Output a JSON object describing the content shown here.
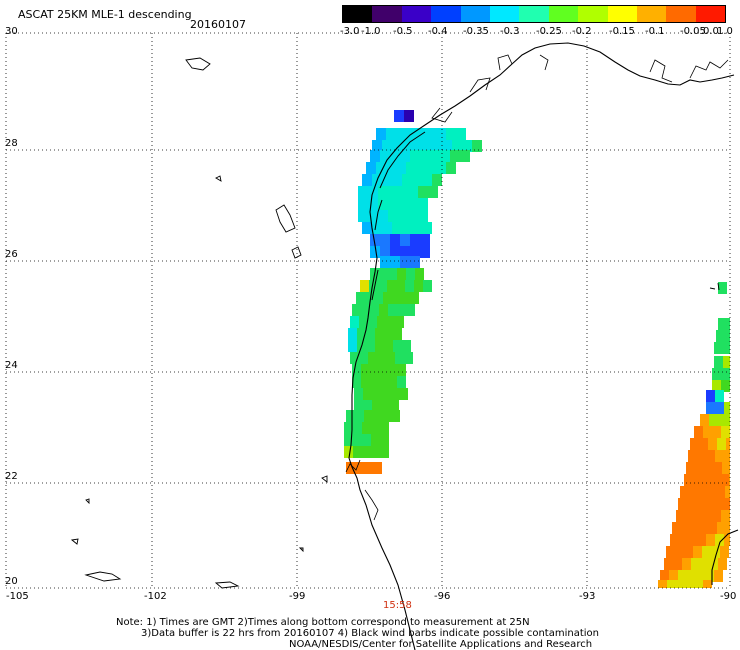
{
  "header": {
    "title": "ASCAT 25KM MLE-1 descending",
    "date": "20160107"
  },
  "colorbar": {
    "labels": [
      "-3.0",
      "-1.0",
      "-0.5",
      "-0.4",
      "-0.35",
      "-0.3",
      "-0.25",
      "-0.2",
      "-0.15",
      "-0.1",
      "-0.05",
      "0.0",
      "1.0"
    ],
    "colors": [
      "#000000",
      "#40006a",
      "#3a00c8",
      "#0040ff",
      "#0098ff",
      "#00e8ff",
      "#20ffb0",
      "#60ff20",
      "#b0ff00",
      "#ffff00",
      "#ffb000",
      "#ff6a00",
      "#ff1a00"
    ]
  },
  "axes": {
    "lat_labels": [
      "30",
      "28",
      "26",
      "24",
      "22",
      "20"
    ],
    "lon_labels": [
      "-105",
      "-102",
      "-99",
      "-96",
      "-93",
      "-90"
    ]
  },
  "time_label": "15:58",
  "notes": {
    "line1": "Note: 1) Times are GMT 2)Times along bottom correspond to measurement at 25N",
    "line2": "3)Data buffer is 22 hrs from 20160107 4) Black wind barbs indicate possible contamination",
    "line3": "NOAA/NESDIS/Center for Satellite Applications and Research"
  }
}
